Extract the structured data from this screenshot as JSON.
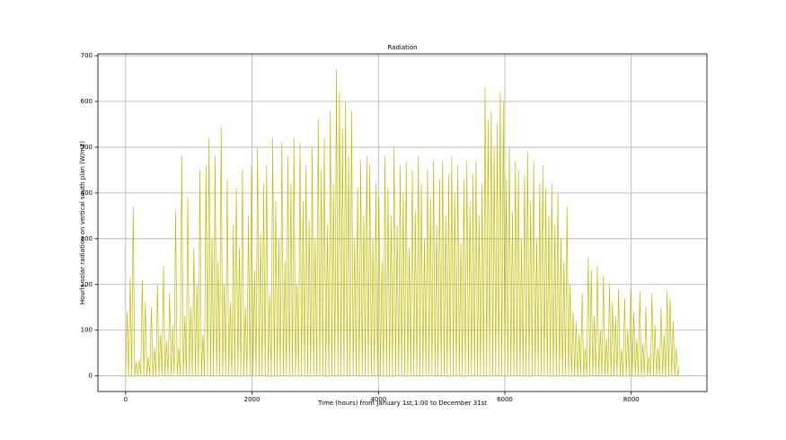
{
  "chart_data": {
    "type": "line",
    "title": "Radiation",
    "x_label": "Time (hours) from January 1st,1:00 to December 31st",
    "y_label": "Hourly solar radiation on vertical south plan (W/m2)",
    "color": "#bfbf00",
    "grid": true,
    "xlim": [
      -438,
      9198
    ],
    "ylim": [
      -34,
      704
    ],
    "xticks": [
      0,
      2000,
      4000,
      6000,
      8000
    ],
    "yticks": [
      0,
      100,
      200,
      300,
      400,
      500,
      600,
      700
    ],
    "x": [
      0,
      24,
      48,
      72,
      96,
      120,
      144,
      168,
      192,
      216,
      240,
      264,
      288,
      312,
      336,
      360,
      384,
      408,
      432,
      456,
      480,
      504,
      528,
      552,
      576,
      600,
      624,
      648,
      672,
      696,
      720,
      744,
      768,
      792,
      816,
      840,
      864,
      888,
      912,
      936,
      960,
      984,
      1008,
      1032,
      1056,
      1080,
      1104,
      1128,
      1152,
      1176,
      1200,
      1224,
      1248,
      1272,
      1296,
      1320,
      1344,
      1368,
      1392,
      1416,
      1440,
      1464,
      1488,
      1512,
      1536,
      1560,
      1584,
      1608,
      1632,
      1656,
      1680,
      1704,
      1728,
      1752,
      1776,
      1800,
      1824,
      1848,
      1872,
      1896,
      1920,
      1944,
      1968,
      1992,
      2016,
      2040,
      2064,
      2088,
      2112,
      2136,
      2160,
      2184,
      2208,
      2232,
      2256,
      2280,
      2304,
      2328,
      2352,
      2376,
      2400,
      2424,
      2448,
      2472,
      2496,
      2520,
      2544,
      2568,
      2592,
      2616,
      2640,
      2664,
      2688,
      2712,
      2736,
      2760,
      2784,
      2808,
      2832,
      2856,
      2880,
      2904,
      2928,
      2952,
      2976,
      3000,
      3024,
      3048,
      3072,
      3096,
      3120,
      3144,
      3168,
      3192,
      3216,
      3240,
      3264,
      3288,
      3312,
      3336,
      3360,
      3384,
      3408,
      3432,
      3456,
      3480,
      3504,
      3528,
      3552,
      3576,
      3600,
      3624,
      3648,
      3672,
      3696,
      3720,
      3744,
      3768,
      3792,
      3816,
      3840,
      3864,
      3888,
      3912,
      3936,
      3960,
      3984,
      4008,
      4032,
      4056,
      4080,
      4104,
      4128,
      4152,
      4176,
      4200,
      4224,
      4248,
      4272,
      4296,
      4320,
      4344,
      4368,
      4392,
      4416,
      4440,
      4464,
      4488,
      4512,
      4536,
      4560,
      4584,
      4608,
      4632,
      4656,
      4680,
      4704,
      4728,
      4752,
      4776,
      4800,
      4824,
      4848,
      4872,
      4896,
      4920,
      4944,
      4968,
      4992,
      5016,
      5040,
      5064,
      5088,
      5112,
      5136,
      5160,
      5184,
      5208,
      5232,
      5256,
      5280,
      5304,
      5328,
      5352,
      5376,
      5400,
      5424,
      5448,
      5472,
      5496,
      5520,
      5544,
      5568,
      5592,
      5616,
      5640,
      5664,
      5688,
      5712,
      5736,
      5760,
      5784,
      5808,
      5832,
      5856,
      5880,
      5904,
      5928,
      5952,
      5976,
      6000,
      6024,
      6048,
      6072,
      6096,
      6120,
      6144,
      6168,
      6192,
      6216,
      6240,
      6264,
      6288,
      6312,
      6336,
      6360,
      6384,
      6408,
      6432,
      6456,
      6480,
      6504,
      6528,
      6552,
      6576,
      6600,
      6624,
      6648,
      6672,
      6696,
      6720,
      6744,
      6768,
      6792,
      6816,
      6840,
      6864,
      6888,
      6912,
      6936,
      6960,
      6984,
      7008,
      7032,
      7056,
      7080,
      7104,
      7128,
      7152,
      7176,
      7200,
      7224,
      7248,
      7272,
      7296,
      7320,
      7344,
      7368,
      7392,
      7416,
      7440,
      7464,
      7488,
      7512,
      7536,
      7560,
      7584,
      7608,
      7632,
      7656,
      7680,
      7704,
      7728,
      7752,
      7776,
      7800,
      7824,
      7848,
      7872,
      7896,
      7920,
      7944,
      7968,
      7992,
      8016,
      8040,
      8064,
      8088,
      8112,
      8136,
      8160,
      8184,
      8208,
      8232,
      8256,
      8280,
      8304,
      8328,
      8352,
      8376,
      8400,
      8424,
      8448,
      8472,
      8496,
      8520,
      8544,
      8568,
      8592,
      8616,
      8640,
      8664,
      8688,
      8712,
      8736,
      8760
    ],
    "values": [
      0,
      140,
      0,
      215,
      0,
      370,
      0,
      30,
      0,
      35,
      0,
      210,
      0,
      160,
      0,
      40,
      0,
      150,
      0,
      60,
      0,
      200,
      0,
      90,
      0,
      240,
      0,
      75,
      0,
      180,
      0,
      110,
      0,
      360,
      0,
      60,
      0,
      480,
      0,
      130,
      0,
      390,
      0,
      150,
      0,
      280,
      0,
      200,
      0,
      450,
      0,
      90,
      0,
      460,
      0,
      520,
      0,
      300,
      0,
      480,
      0,
      250,
      0,
      545,
      0,
      200,
      0,
      430,
      0,
      160,
      0,
      330,
      0,
      410,
      0,
      280,
      0,
      450,
      0,
      150,
      0,
      350,
      0,
      460,
      0,
      230,
      0,
      500,
      0,
      310,
      0,
      420,
      0,
      460,
      0,
      180,
      0,
      520,
      0,
      380,
      0,
      300,
      0,
      510,
      0,
      250,
      0,
      480,
      0,
      420,
      0,
      520,
      0,
      200,
      0,
      510,
      0,
      380,
      0,
      460,
      0,
      340,
      0,
      500,
      0,
      300,
      0,
      560,
      0,
      450,
      0,
      520,
      0,
      330,
      0,
      580,
      0,
      420,
      0,
      670,
      0,
      620,
      0,
      540,
      0,
      600,
      0,
      480,
      0,
      580,
      0,
      300,
      0,
      410,
      0,
      470,
      0,
      350,
      0,
      480,
      0,
      460,
      0,
      300,
      0,
      420,
      0,
      390,
      0,
      250,
      0,
      480,
      0,
      410,
      0,
      350,
      0,
      500,
      0,
      330,
      0,
      460,
      0,
      400,
      0,
      470,
      0,
      280,
      0,
      450,
      0,
      360,
      0,
      480,
      0,
      420,
      0,
      300,
      0,
      450,
      0,
      390,
      0,
      470,
      0,
      330,
      0,
      430,
      0,
      470,
      0,
      350,
      0,
      440,
      0,
      480,
      0,
      400,
      0,
      460,
      0,
      290,
      0,
      430,
      0,
      470,
      0,
      380,
      0,
      440,
      0,
      470,
      0,
      350,
      0,
      420,
      0,
      630,
      0,
      560,
      0,
      580,
      0,
      500,
      0,
      550,
      0,
      620,
      0,
      600,
      0,
      430,
      0,
      500,
      0,
      360,
      0,
      470,
      0,
      450,
      0,
      300,
      0,
      440,
      0,
      490,
      0,
      380,
      0,
      470,
      0,
      300,
      0,
      420,
      0,
      460,
      0,
      410,
      0,
      350,
      0,
      420,
      0,
      330,
      0,
      400,
      0,
      300,
      0,
      250,
      0,
      370,
      0,
      200,
      0,
      140,
      0,
      120,
      0,
      90,
      0,
      180,
      0,
      60,
      0,
      260,
      0,
      230,
      0,
      130,
      0,
      240,
      0,
      100,
      0,
      220,
      0,
      80,
      0,
      200,
      0,
      160,
      0,
      130,
      0,
      190,
      0,
      60,
      0,
      170,
      0,
      100,
      0,
      190,
      0,
      140,
      0,
      80,
      0,
      185,
      0,
      70,
      0,
      150,
      0,
      40,
      0,
      180,
      0,
      110,
      0,
      60,
      0,
      150,
      0,
      90,
      0,
      185,
      0,
      170,
      0,
      120,
      0,
      60,
      0,
      20
    ]
  }
}
